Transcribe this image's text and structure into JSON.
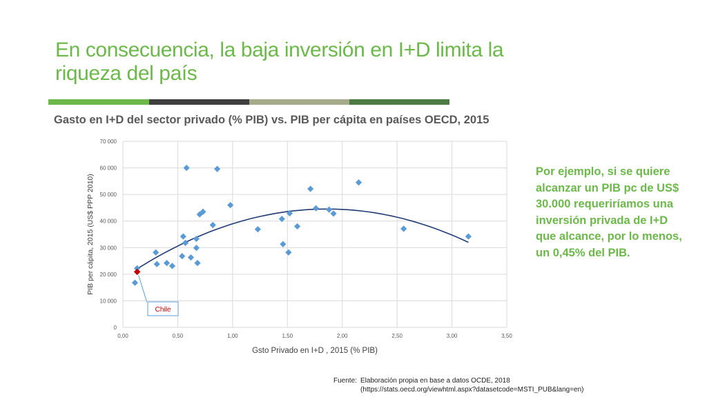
{
  "slide": {
    "title": "En consecuencia, la baja inversión en I+D limita la riqueza del país",
    "note": "Por ejemplo, si se quiere alcanzar un PIB pc de US$ 30.000 requeriríamos una inversión privada de I+D que alcance, por lo menos, un 0,45% del PIB.",
    "source_label": "Fuente:",
    "source_line1": "Elaboración propia en base a datos OCDE, 2018",
    "source_line2": "(https://stats.oecd.org/viewhtml.aspx?datasetcode=MSTI_PUB&lang=en)"
  },
  "colors": {
    "title": "#6cb84a",
    "rule": [
      "#6cb84a",
      "#3f3f3f",
      "#a5aa8a",
      "#4e7a44"
    ],
    "points": "#5b9bd5",
    "highlight": "#c00000",
    "trend": "#1f3a73",
    "grid": "#d9d9d9"
  },
  "chart_data": {
    "type": "scatter",
    "title": "Gasto en I+D del sector privado (% PIB) vs. PIB per cápita en países OECD, 2015",
    "xlabel": "Gsto Privado en I+D , 2015 (% PIB)",
    "ylabel": "PIB per cápita, 2015 (US$ PPP 2010)",
    "xlim": [
      0,
      3.5
    ],
    "ylim": [
      0,
      70000
    ],
    "xticks": [
      "0,00",
      "0,50",
      "1,00",
      "1,50",
      "2,00",
      "2,50",
      "3,00",
      "3,50"
    ],
    "yticks": [
      "0",
      "10 000",
      "20 000",
      "30 000",
      "40 000",
      "50 000",
      "60 000",
      "70 000"
    ],
    "grid": true,
    "points": [
      {
        "x": 0.11,
        "y": 16800
      },
      {
        "x": 0.13,
        "y": 22200
      },
      {
        "x": 0.3,
        "y": 28200
      },
      {
        "x": 0.31,
        "y": 23800
      },
      {
        "x": 0.4,
        "y": 24200
      },
      {
        "x": 0.45,
        "y": 23100
      },
      {
        "x": 0.54,
        "y": 26800
      },
      {
        "x": 0.55,
        "y": 34200
      },
      {
        "x": 0.57,
        "y": 31800
      },
      {
        "x": 0.58,
        "y": 60000
      },
      {
        "x": 0.62,
        "y": 26300
      },
      {
        "x": 0.67,
        "y": 29900
      },
      {
        "x": 0.67,
        "y": 33300
      },
      {
        "x": 0.68,
        "y": 24200
      },
      {
        "x": 0.7,
        "y": 42500
      },
      {
        "x": 0.73,
        "y": 43500
      },
      {
        "x": 0.82,
        "y": 38500
      },
      {
        "x": 0.86,
        "y": 59600
      },
      {
        "x": 0.98,
        "y": 46000
      },
      {
        "x": 1.23,
        "y": 36900
      },
      {
        "x": 1.45,
        "y": 40800
      },
      {
        "x": 1.46,
        "y": 31300
      },
      {
        "x": 1.51,
        "y": 28200
      },
      {
        "x": 1.52,
        "y": 42900
      },
      {
        "x": 1.59,
        "y": 38000
      },
      {
        "x": 1.71,
        "y": 52100
      },
      {
        "x": 1.76,
        "y": 44800
      },
      {
        "x": 1.88,
        "y": 44300
      },
      {
        "x": 1.92,
        "y": 42800
      },
      {
        "x": 2.15,
        "y": 54500
      },
      {
        "x": 2.56,
        "y": 37100
      },
      {
        "x": 3.15,
        "y": 34200
      }
    ],
    "highlight": {
      "label": "Chile",
      "x": 0.13,
      "y": 20900
    },
    "trendline": {
      "type": "polynomial-2",
      "x": [
        0.13,
        1.8,
        3.15
      ],
      "y": [
        22000,
        44500,
        32000
      ]
    }
  }
}
